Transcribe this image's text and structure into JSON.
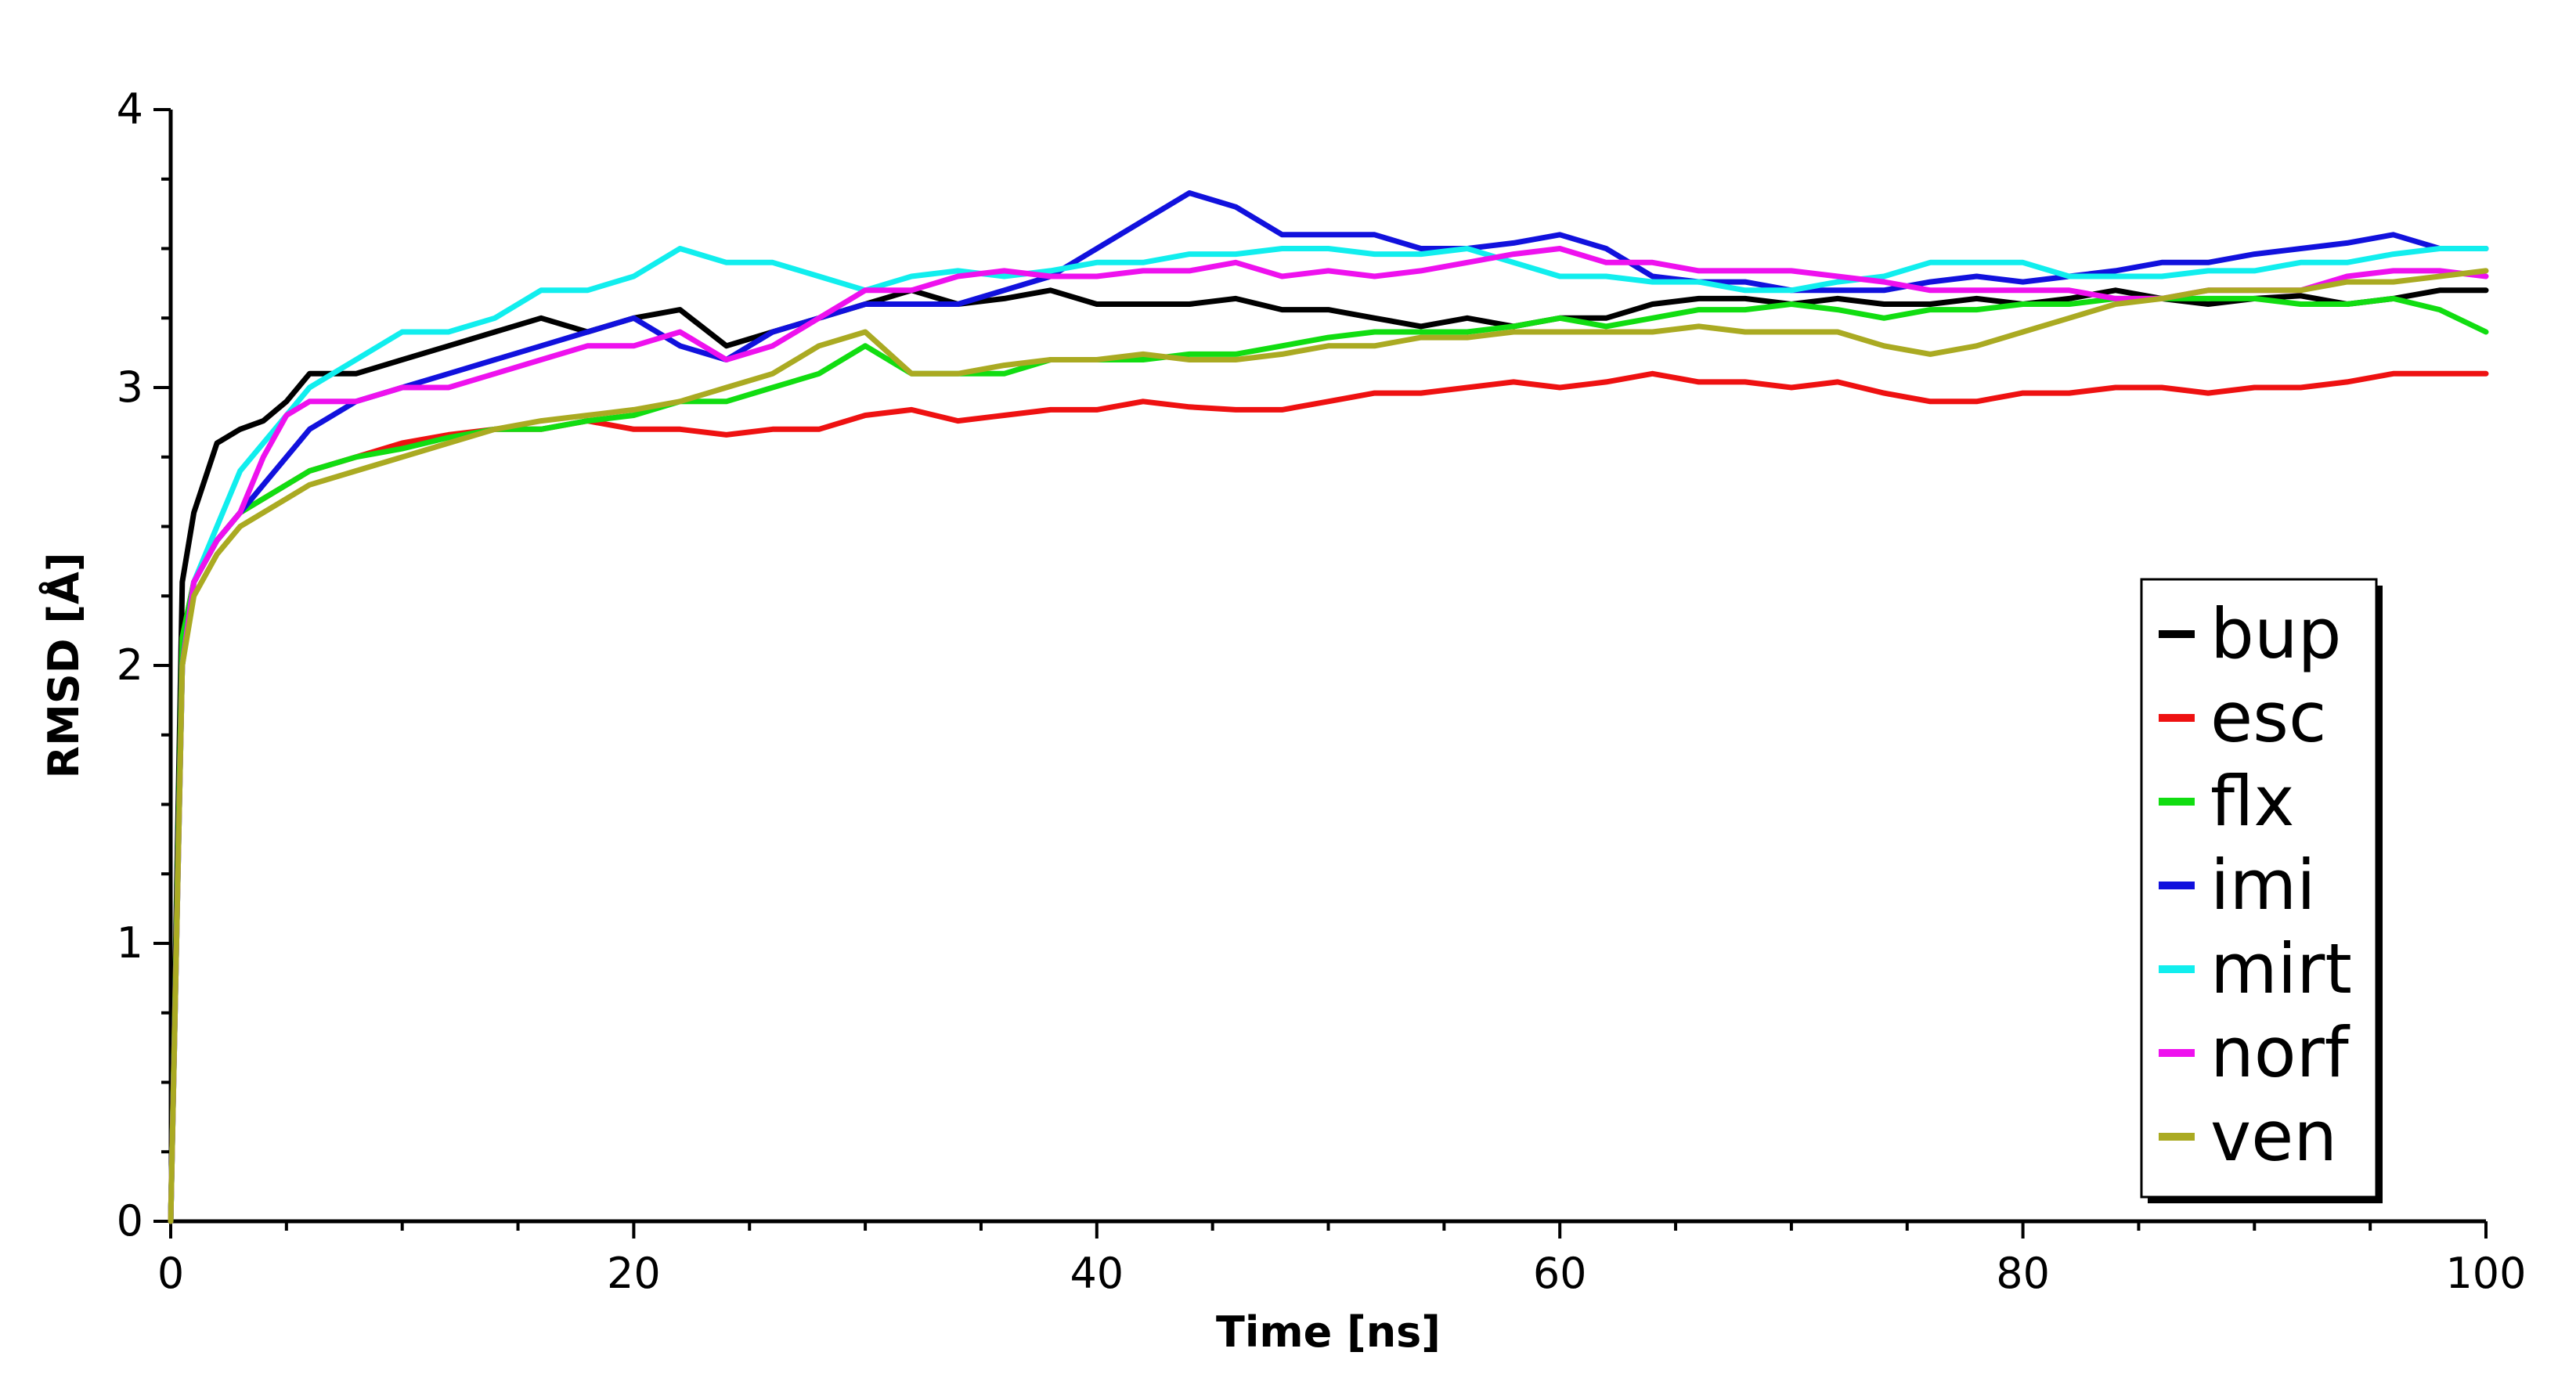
{
  "chart_data": {
    "type": "line",
    "title": "",
    "xlabel": "Time [ns]",
    "ylabel": "RMSD [Å]",
    "xlim": [
      0,
      100
    ],
    "ylim": [
      0,
      4
    ],
    "xticks": [
      "0",
      "20",
      "40",
      "60",
      "80",
      "100"
    ],
    "yticks": [
      "0",
      "1",
      "2",
      "3",
      "4"
    ],
    "grid": false,
    "legend_position": "right",
    "x": [
      0,
      0.5,
      1,
      2,
      3,
      4,
      5,
      6,
      8,
      10,
      12,
      14,
      16,
      18,
      20,
      22,
      24,
      26,
      28,
      30,
      32,
      34,
      36,
      38,
      40,
      42,
      44,
      46,
      48,
      50,
      52,
      54,
      56,
      58,
      60,
      62,
      64,
      66,
      68,
      70,
      72,
      74,
      76,
      78,
      80,
      82,
      84,
      86,
      88,
      90,
      92,
      94,
      96,
      98,
      100
    ],
    "series": [
      {
        "name": "bup",
        "color": "#000000",
        "values": [
          0,
          2.3,
          2.55,
          2.8,
          2.85,
          2.88,
          2.95,
          3.05,
          3.05,
          3.1,
          3.15,
          3.2,
          3.25,
          3.2,
          3.25,
          3.28,
          3.15,
          3.2,
          3.25,
          3.3,
          3.35,
          3.3,
          3.32,
          3.35,
          3.3,
          3.3,
          3.3,
          3.32,
          3.28,
          3.28,
          3.25,
          3.22,
          3.25,
          3.22,
          3.25,
          3.25,
          3.3,
          3.32,
          3.32,
          3.3,
          3.32,
          3.3,
          3.3,
          3.32,
          3.3,
          3.32,
          3.35,
          3.32,
          3.3,
          3.32,
          3.33,
          3.3,
          3.32,
          3.35,
          3.35
        ]
      },
      {
        "name": "esc",
        "color": "#ee1111",
        "values": [
          0,
          2.1,
          2.3,
          2.45,
          2.55,
          2.6,
          2.65,
          2.7,
          2.75,
          2.8,
          2.83,
          2.85,
          2.85,
          2.88,
          2.85,
          2.85,
          2.83,
          2.85,
          2.85,
          2.9,
          2.92,
          2.88,
          2.9,
          2.92,
          2.92,
          2.95,
          2.93,
          2.92,
          2.92,
          2.95,
          2.98,
          2.98,
          3.0,
          3.02,
          3.0,
          3.02,
          3.05,
          3.02,
          3.02,
          3.0,
          3.02,
          2.98,
          2.95,
          2.95,
          2.98,
          2.98,
          3.0,
          3.0,
          2.98,
          3.0,
          3.0,
          3.02,
          3.05,
          3.05,
          3.05
        ]
      },
      {
        "name": "flx",
        "color": "#11dd11",
        "values": [
          0,
          2.1,
          2.3,
          2.45,
          2.55,
          2.6,
          2.65,
          2.7,
          2.75,
          2.78,
          2.82,
          2.85,
          2.85,
          2.88,
          2.9,
          2.95,
          2.95,
          3.0,
          3.05,
          3.15,
          3.05,
          3.05,
          3.05,
          3.1,
          3.1,
          3.1,
          3.12,
          3.12,
          3.15,
          3.18,
          3.2,
          3.2,
          3.2,
          3.22,
          3.25,
          3.22,
          3.25,
          3.28,
          3.28,
          3.3,
          3.28,
          3.25,
          3.28,
          3.28,
          3.3,
          3.3,
          3.32,
          3.32,
          3.32,
          3.32,
          3.3,
          3.3,
          3.32,
          3.28,
          3.2
        ]
      },
      {
        "name": "imi",
        "color": "#1111dd",
        "values": [
          0,
          2.0,
          2.3,
          2.45,
          2.55,
          2.65,
          2.75,
          2.85,
          2.95,
          3.0,
          3.05,
          3.1,
          3.15,
          3.2,
          3.25,
          3.15,
          3.1,
          3.2,
          3.25,
          3.3,
          3.3,
          3.3,
          3.35,
          3.4,
          3.5,
          3.6,
          3.7,
          3.65,
          3.55,
          3.55,
          3.55,
          3.5,
          3.5,
          3.52,
          3.55,
          3.5,
          3.4,
          3.38,
          3.38,
          3.35,
          3.35,
          3.35,
          3.38,
          3.4,
          3.38,
          3.4,
          3.42,
          3.45,
          3.45,
          3.48,
          3.5,
          3.52,
          3.55,
          3.5,
          3.5
        ]
      },
      {
        "name": "mirt",
        "color": "#11eeee",
        "values": [
          0,
          2.0,
          2.3,
          2.5,
          2.7,
          2.8,
          2.9,
          3.0,
          3.1,
          3.2,
          3.2,
          3.25,
          3.35,
          3.35,
          3.4,
          3.5,
          3.45,
          3.45,
          3.4,
          3.35,
          3.4,
          3.42,
          3.4,
          3.42,
          3.45,
          3.45,
          3.48,
          3.48,
          3.5,
          3.5,
          3.48,
          3.48,
          3.5,
          3.45,
          3.4,
          3.4,
          3.38,
          3.38,
          3.35,
          3.35,
          3.38,
          3.4,
          3.45,
          3.45,
          3.45,
          3.4,
          3.4,
          3.4,
          3.42,
          3.42,
          3.45,
          3.45,
          3.48,
          3.5,
          3.5
        ]
      },
      {
        "name": "norf",
        "color": "#ee11ee",
        "values": [
          0,
          2.0,
          2.3,
          2.45,
          2.55,
          2.75,
          2.9,
          2.95,
          2.95,
          3.0,
          3.0,
          3.05,
          3.1,
          3.15,
          3.15,
          3.2,
          3.1,
          3.15,
          3.25,
          3.35,
          3.35,
          3.4,
          3.42,
          3.4,
          3.4,
          3.42,
          3.42,
          3.45,
          3.4,
          3.42,
          3.4,
          3.42,
          3.45,
          3.48,
          3.5,
          3.45,
          3.45,
          3.42,
          3.42,
          3.42,
          3.4,
          3.38,
          3.35,
          3.35,
          3.35,
          3.35,
          3.32,
          3.32,
          3.35,
          3.35,
          3.35,
          3.4,
          3.42,
          3.42,
          3.4
        ]
      },
      {
        "name": "ven",
        "color": "#aaaa22",
        "values": [
          0,
          2.0,
          2.25,
          2.4,
          2.5,
          2.55,
          2.6,
          2.65,
          2.7,
          2.75,
          2.8,
          2.85,
          2.88,
          2.9,
          2.92,
          2.95,
          3.0,
          3.05,
          3.15,
          3.2,
          3.05,
          3.05,
          3.08,
          3.1,
          3.1,
          3.12,
          3.1,
          3.1,
          3.12,
          3.15,
          3.15,
          3.18,
          3.18,
          3.2,
          3.2,
          3.2,
          3.2,
          3.22,
          3.2,
          3.2,
          3.2,
          3.15,
          3.12,
          3.15,
          3.2,
          3.25,
          3.3,
          3.32,
          3.35,
          3.35,
          3.35,
          3.38,
          3.38,
          3.4,
          3.42
        ]
      }
    ]
  }
}
